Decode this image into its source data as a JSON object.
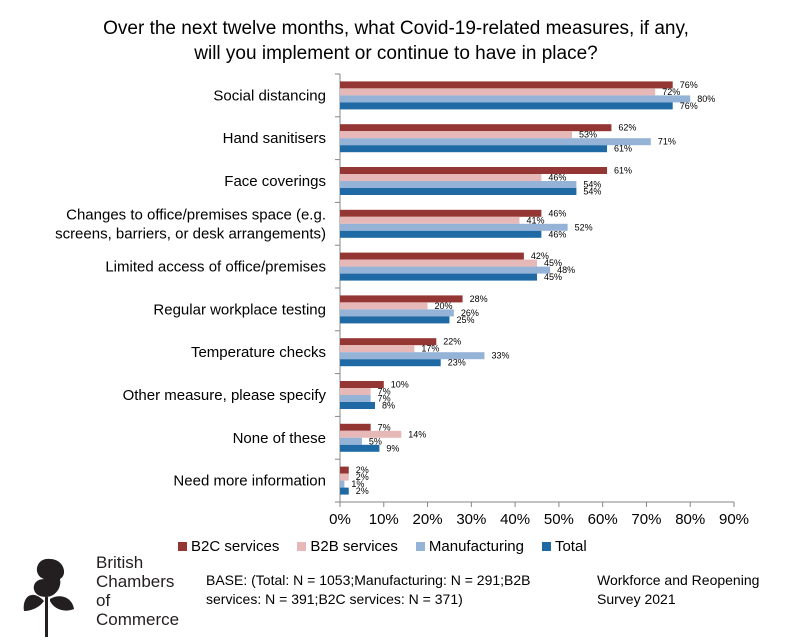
{
  "title_line1": "Over the next twelve months, what Covid-19-related measures, if any,",
  "title_line2": "will you implement or continue to have in place?",
  "colors": {
    "B2C services": "#943634",
    "B2B services": "#e6b9b8",
    "Manufacturing": "#95b3d7",
    "Total": "#1f6aa5",
    "axis": "#868686"
  },
  "chart_data": {
    "type": "bar",
    "orientation": "horizontal",
    "categories": [
      [
        "Social distancing"
      ],
      [
        "Hand sanitisers"
      ],
      [
        "Face coverings"
      ],
      [
        "Changes to office/premises space (e.g.",
        "screens, barriers, or desk arrangements)"
      ],
      [
        "Limited access of office/premises"
      ],
      [
        "Regular workplace testing"
      ],
      [
        "Temperature checks"
      ],
      [
        "Other measure, please specify"
      ],
      [
        "None of these"
      ],
      [
        "Need more information"
      ]
    ],
    "series": [
      {
        "name": "B2C services",
        "values": [
          76,
          62,
          61,
          46,
          42,
          28,
          22,
          10,
          7,
          2
        ]
      },
      {
        "name": "B2B services",
        "values": [
          72,
          53,
          46,
          41,
          45,
          20,
          17,
          7,
          14,
          2
        ]
      },
      {
        "name": "Manufacturing",
        "values": [
          80,
          71,
          54,
          52,
          48,
          26,
          33,
          7,
          5,
          1
        ]
      },
      {
        "name": "Total",
        "values": [
          76,
          61,
          54,
          46,
          45,
          25,
          23,
          8,
          9,
          2
        ]
      }
    ],
    "xlim": [
      0,
      90
    ],
    "xticks": [
      "0%",
      "10%",
      "20%",
      "30%",
      "40%",
      "50%",
      "60%",
      "70%",
      "80%",
      "90%"
    ],
    "legend_position": "bottom",
    "grid": false
  },
  "logo": {
    "line1": "British",
    "line2": "Chambers of",
    "line3": "Commerce"
  },
  "base_text": "BASE: (Total: N = 1053;Manufacturing: N = 291;B2B services: N = 391;B2C services: N = 371)",
  "survey_text": "Workforce and Reopening Survey 2021"
}
